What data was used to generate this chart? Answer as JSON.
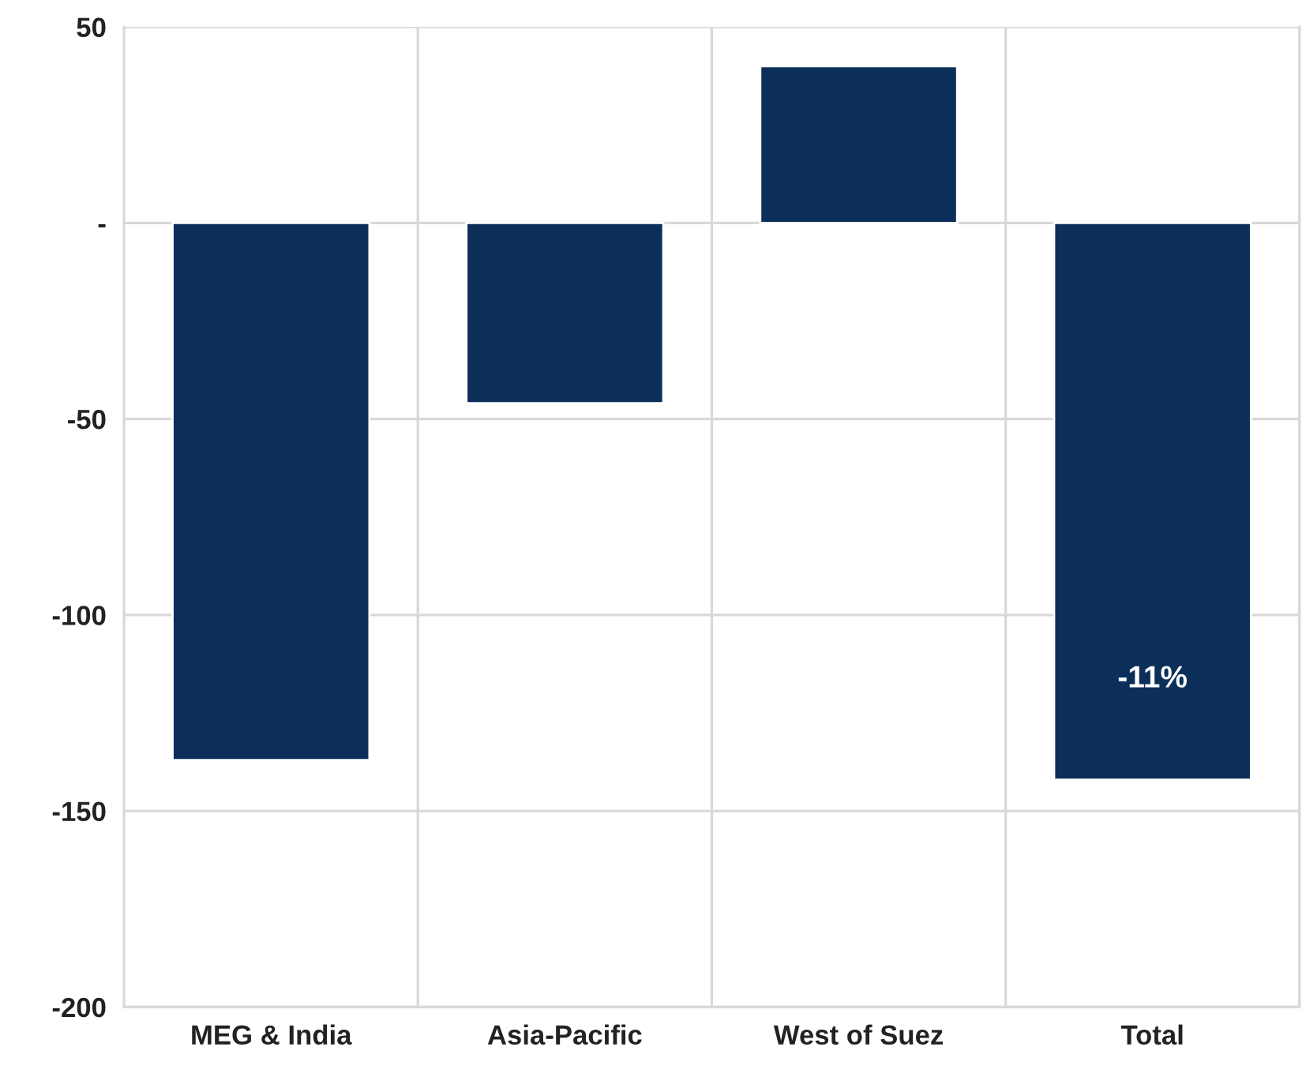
{
  "chart_data": {
    "type": "bar",
    "categories": [
      "MEG & India",
      "Asia-Pacific",
      "West of Suez",
      "Total"
    ],
    "values": [
      -137,
      -46,
      40,
      -142
    ],
    "annotations": [
      "-11%"
    ],
    "color": "#0b2f59",
    "ylim": [
      -200,
      50
    ],
    "yticks": [
      50,
      {
        "value": 0,
        "label": "-"
      },
      -50,
      -100,
      -150,
      -200
    ],
    "grid": true
  }
}
